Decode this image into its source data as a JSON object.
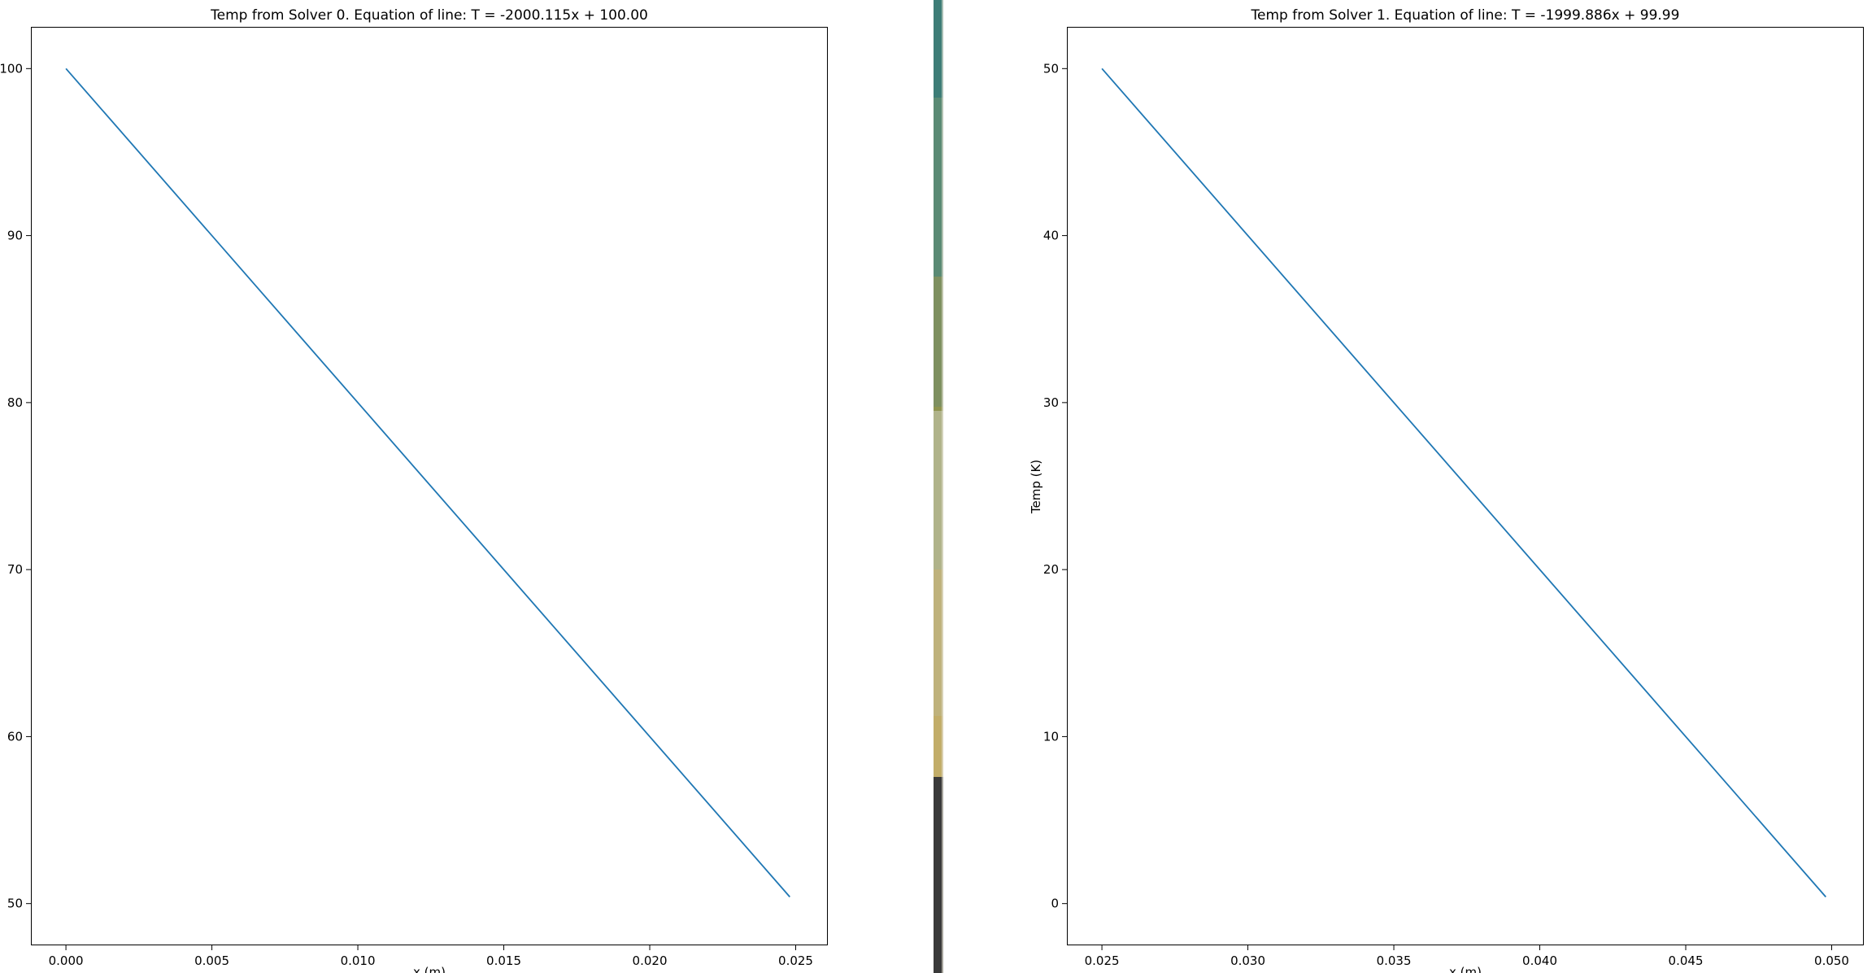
{
  "chart_data": [
    {
      "type": "line",
      "title": "Temp from Solver 0. Equation of line: T = -2000.115x + 100.00",
      "xlabel": "x (m)",
      "ylabel": "",
      "xlim": [
        -0.0012,
        0.0261
      ],
      "ylim": [
        47.5,
        102.5
      ],
      "xticks": [
        "0.000",
        "0.005",
        "0.010",
        "0.015",
        "0.020",
        "0.025"
      ],
      "yticks": [
        "50",
        "60",
        "70",
        "80",
        "90",
        "100"
      ],
      "grid": false,
      "series": [
        {
          "color": "#1f77b4",
          "x": [
            0.0,
            0.0248
          ],
          "y": [
            100.0,
            50.4
          ]
        }
      ]
    },
    {
      "type": "line",
      "title": "Temp from Solver 1. Equation of line: T = -1999.886x + 99.99",
      "xlabel": "x (m)",
      "ylabel": "Temp (K)",
      "xlim": [
        0.0238,
        0.0511
      ],
      "ylim": [
        -2.5,
        52.5
      ],
      "xticks": [
        "0.025",
        "0.030",
        "0.035",
        "0.040",
        "0.045",
        "0.050"
      ],
      "yticks": [
        "0",
        "10",
        "20",
        "30",
        "40",
        "50"
      ],
      "grid": false,
      "series": [
        {
          "color": "#1f77b4",
          "x": [
            0.025,
            0.0498
          ],
          "y": [
            50.0,
            0.4
          ]
        }
      ]
    }
  ],
  "separator": {
    "colors": [
      "#3d7d77",
      "#5a8a74",
      "#7e9060",
      "#8e944f",
      "#b0b38a",
      "#bfb27c",
      "#c2ad69",
      "#3a3a3a"
    ]
  }
}
